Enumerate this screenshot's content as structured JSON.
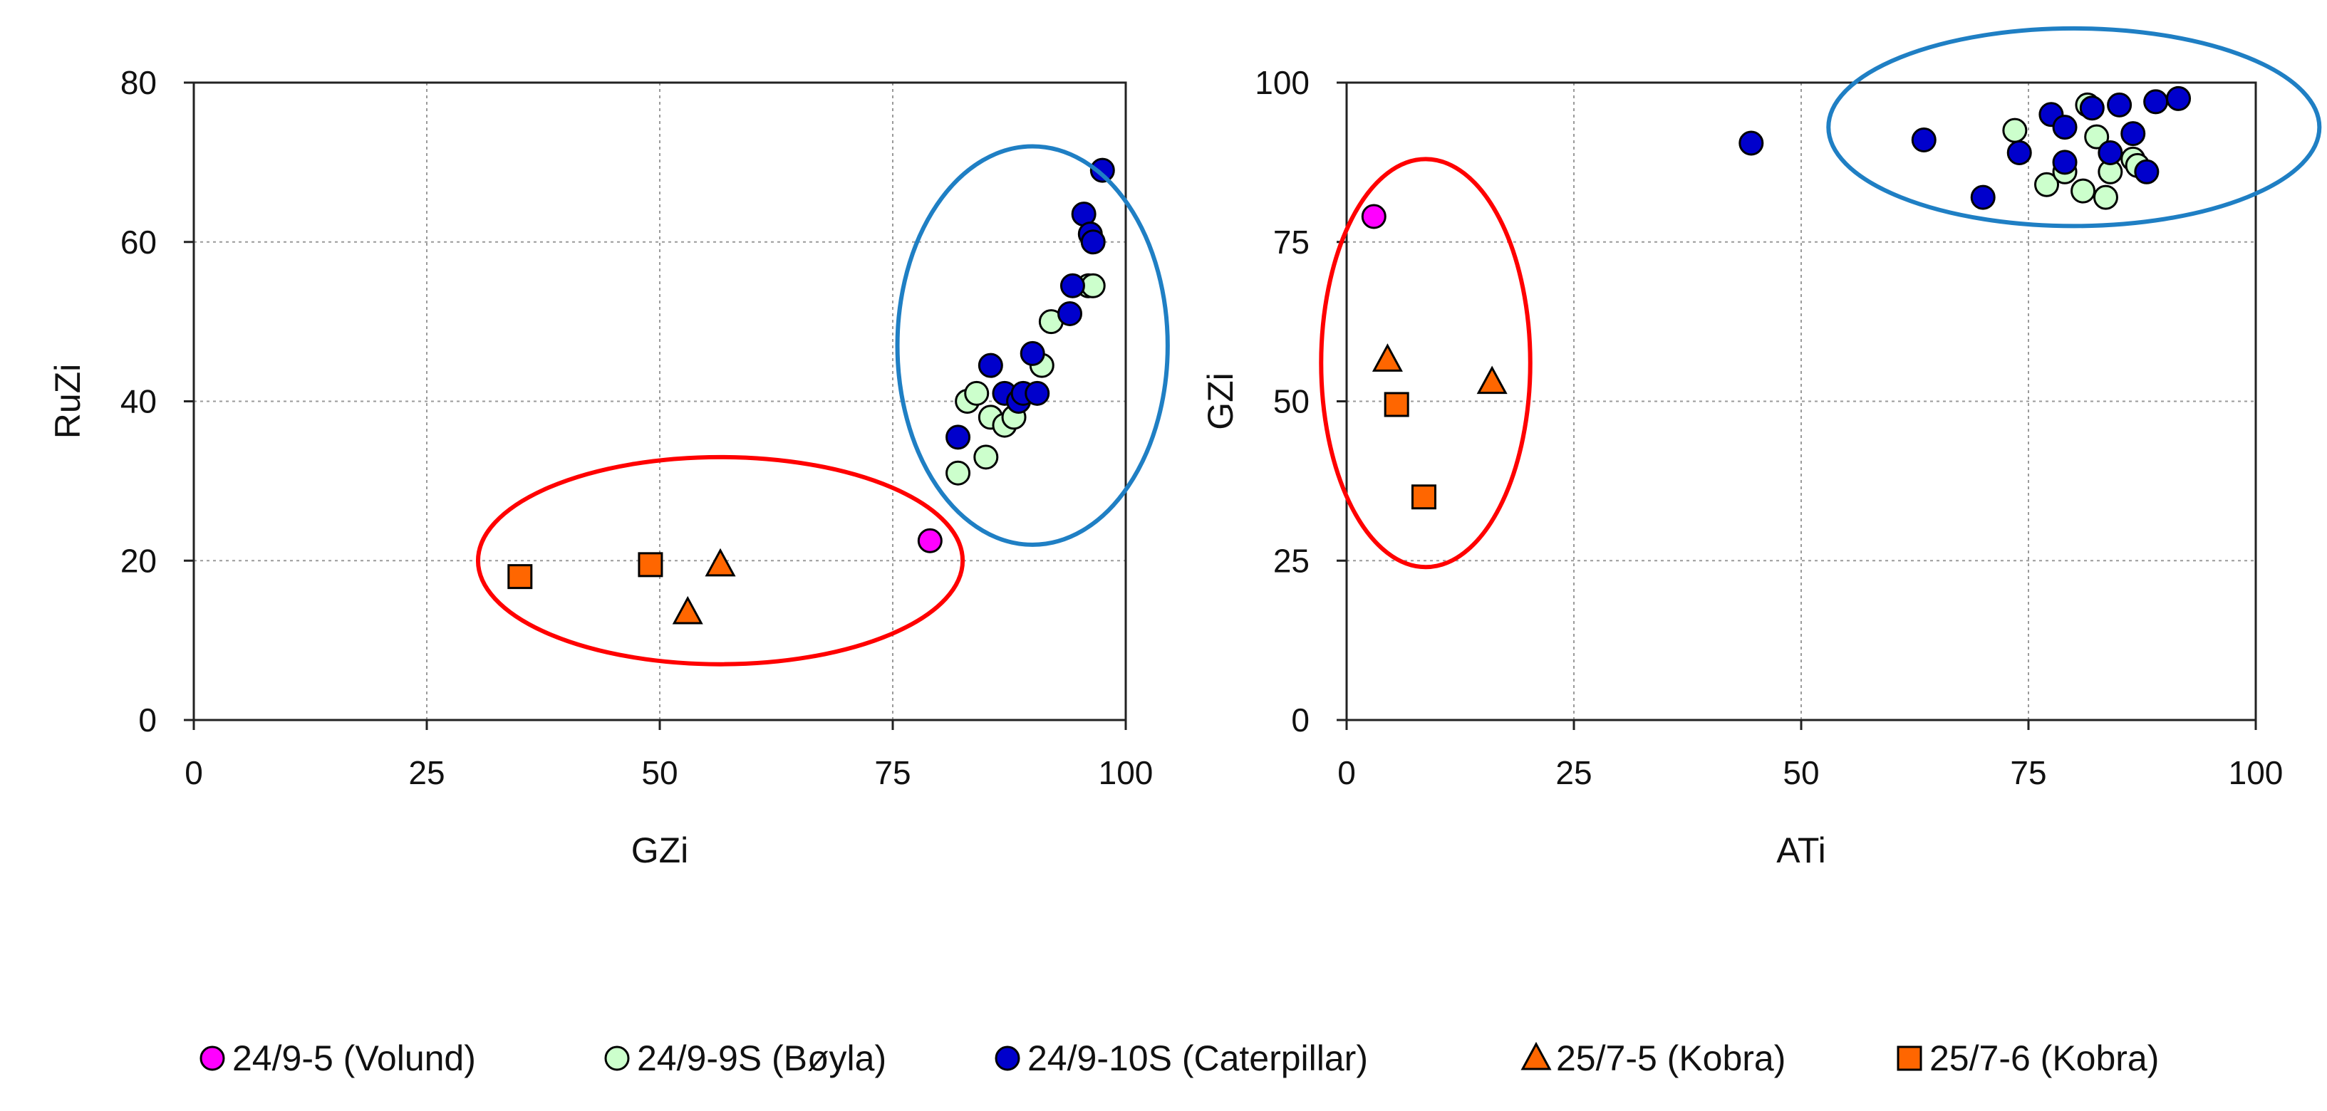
{
  "chart_data": [
    {
      "type": "scatter",
      "title": "",
      "xlabel": "GZi",
      "ylabel": "RuZi",
      "xlim": [
        0,
        100
      ],
      "ylim": [
        0,
        80
      ],
      "xticks": [
        0,
        25,
        50,
        75,
        100
      ],
      "yticks": [
        0,
        20,
        40,
        60,
        80
      ],
      "grid": true,
      "series": [
        {
          "name": "24/9-5 (Volund)",
          "marker": "circle",
          "color": "#ff00ff",
          "x": [
            79
          ],
          "y": [
            22.5
          ]
        },
        {
          "name": "24/9-9S (Bøyla)",
          "marker": "circle",
          "color": "#ccffcc",
          "x": [
            82,
            83,
            84,
            85,
            85.5,
            87,
            88,
            91,
            92,
            96,
            96.5
          ],
          "y": [
            31,
            40,
            41,
            33,
            38,
            37,
            38,
            44.5,
            50,
            54.5,
            54.5
          ]
        },
        {
          "name": "24/9-10S (Caterpillar)",
          "marker": "circle",
          "color": "#0000cc",
          "x": [
            82,
            85.5,
            87,
            88.5,
            89,
            90,
            90.5,
            94,
            94.3,
            95.5,
            96.2,
            96.5,
            97.5
          ],
          "y": [
            35.5,
            44.5,
            41,
            40,
            41,
            46,
            41,
            51,
            54.5,
            63.5,
            61,
            60,
            69
          ]
        },
        {
          "name": "25/7-5 (Kobra)",
          "marker": "triangle",
          "color": "#ff6600",
          "x": [
            53,
            56.5
          ],
          "y": [
            13.5,
            19.5
          ]
        },
        {
          "name": "25/7-6 (Kobra)",
          "marker": "square",
          "color": "#ff6600",
          "x": [
            35,
            49
          ],
          "y": [
            18,
            19.5
          ]
        }
      ],
      "annotations": [
        {
          "type": "ellipse",
          "color": "#ff0000",
          "cx": 56.5,
          "cy": 20,
          "rx": 26,
          "ry": 13
        },
        {
          "type": "ellipse",
          "color": "#1f7fc4",
          "cx": 90,
          "cy": 47,
          "rx": 14.5,
          "ry": 25
        }
      ]
    },
    {
      "type": "scatter",
      "title": "",
      "xlabel": "ATi",
      "ylabel": "GZi",
      "xlim": [
        0,
        100
      ],
      "ylim": [
        0,
        100
      ],
      "xticks": [
        0,
        25,
        50,
        75,
        100
      ],
      "yticks": [
        0,
        25,
        50,
        75,
        100
      ],
      "grid": true,
      "series": [
        {
          "name": "24/9-5 (Volund)",
          "marker": "circle",
          "color": "#ff00ff",
          "x": [
            3
          ],
          "y": [
            79
          ]
        },
        {
          "name": "24/9-9S (Bøyla)",
          "marker": "circle",
          "color": "#ccffcc",
          "x": [
            73.5,
            77,
            79,
            81,
            81.5,
            82.5,
            83.5,
            84,
            86.5,
            87
          ],
          "y": [
            92.5,
            84,
            86,
            83,
            96.5,
            91.5,
            82,
            86,
            88,
            87
          ]
        },
        {
          "name": "24/9-10S (Caterpillar)",
          "marker": "circle",
          "color": "#0000cc",
          "x": [
            44.5,
            63.5,
            70,
            74,
            77.5,
            79,
            79,
            82,
            84,
            85,
            86.5,
            88,
            89,
            91.5
          ],
          "y": [
            90.5,
            91,
            82,
            89,
            95,
            93,
            87.5,
            96,
            89,
            96.5,
            92,
            86,
            97,
            97.5
          ]
        },
        {
          "name": "25/7-5 (Kobra)",
          "marker": "triangle",
          "color": "#ff6600",
          "x": [
            4.5,
            16
          ],
          "y": [
            56.5,
            53
          ]
        },
        {
          "name": "25/7-6 (Kobra)",
          "marker": "square",
          "color": "#ff6600",
          "x": [
            5.5,
            8.5
          ],
          "y": [
            49.5,
            35
          ]
        }
      ],
      "annotations": [
        {
          "type": "ellipse",
          "color": "#ff0000",
          "cx": 8.7,
          "cy": 56,
          "rx": 11.5,
          "ry": 32
        },
        {
          "type": "ellipse",
          "color": "#1f7fc4",
          "cx": 80,
          "cy": 93,
          "rx": 27,
          "ry": 15.5
        }
      ]
    }
  ],
  "legend": {
    "placement": "bottom-center",
    "items": [
      {
        "label": "24/9-5 (Volund)",
        "marker": "circle",
        "color": "#ff00ff"
      },
      {
        "label": "24/9-9S (Bøyla)",
        "marker": "circle",
        "color": "#ccffcc"
      },
      {
        "label": "24/9-10S (Caterpillar)",
        "marker": "circle",
        "color": "#0000cc"
      },
      {
        "label": "25/7-5 (Kobra)",
        "marker": "triangle",
        "color": "#ff6600"
      },
      {
        "label": "25/7-6 (Kobra)",
        "marker": "square",
        "color": "#ff6600"
      }
    ]
  }
}
